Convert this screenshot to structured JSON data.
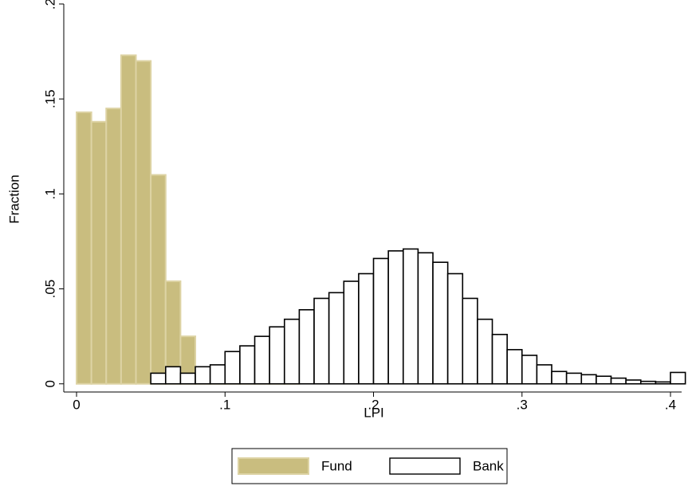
{
  "chart_data": {
    "type": "histogram",
    "xlabel": "LPI",
    "ylabel": "Fraction",
    "xlim": [
      -0.0086,
      0.4075
    ],
    "ylim": [
      -0.0043,
      0.2
    ],
    "xticks": [
      0,
      {
        "value": 0.1,
        "label": ".1"
      },
      {
        "value": 0.2,
        "label": ".2"
      },
      {
        "value": 0.3,
        "label": ".3"
      },
      {
        "value": 0.4,
        "label": ".4"
      }
    ],
    "yticks": [
      0,
      {
        "value": 0.05,
        "label": ".05"
      },
      {
        "value": 0.1,
        "label": ".1"
      },
      {
        "value": 0.15,
        "label": ".15"
      },
      {
        "value": 0.2,
        "label": ".2"
      }
    ],
    "legend": "bottom",
    "series": [
      {
        "name": "Fund",
        "color": "#c9bd7f",
        "edgecolor": "#ddd3a4",
        "bins": [
          0,
          0.01,
          0.02,
          0.03,
          0.04,
          0.05,
          0.06,
          0.07,
          0.08,
          0.09,
          0.1,
          0.11,
          0.12,
          0.13,
          0.14,
          0.15
        ],
        "values": [
          0.143,
          0.138,
          0.145,
          0.173,
          0.17,
          0.11,
          0.054,
          0.025,
          0.006,
          0.004,
          0.003,
          0.002,
          0.002,
          0.001,
          0.001
        ]
      },
      {
        "name": "Bank",
        "color": "#ffffff",
        "edgecolor": "#000000",
        "bins": [
          0.05,
          0.06,
          0.07,
          0.08,
          0.09,
          0.1,
          0.11,
          0.12,
          0.13,
          0.14,
          0.15,
          0.16,
          0.17,
          0.18,
          0.19,
          0.2,
          0.21,
          0.22,
          0.23,
          0.24,
          0.25,
          0.26,
          0.27,
          0.28,
          0.29,
          0.3,
          0.31,
          0.32,
          0.33,
          0.34,
          0.35,
          0.36,
          0.37,
          0.38,
          0.39,
          0.4,
          0.41
        ],
        "values": [
          0.0056,
          0.009,
          0.0056,
          0.009,
          0.01,
          0.017,
          0.02,
          0.025,
          0.03,
          0.034,
          0.039,
          0.045,
          0.048,
          0.054,
          0.058,
          0.066,
          0.07,
          0.071,
          0.069,
          0.064,
          0.058,
          0.045,
          0.034,
          0.026,
          0.018,
          0.015,
          0.01,
          0.0065,
          0.0056,
          0.0048,
          0.004,
          0.003,
          0.002,
          0.0013,
          0.001,
          0.006
        ]
      }
    ]
  }
}
